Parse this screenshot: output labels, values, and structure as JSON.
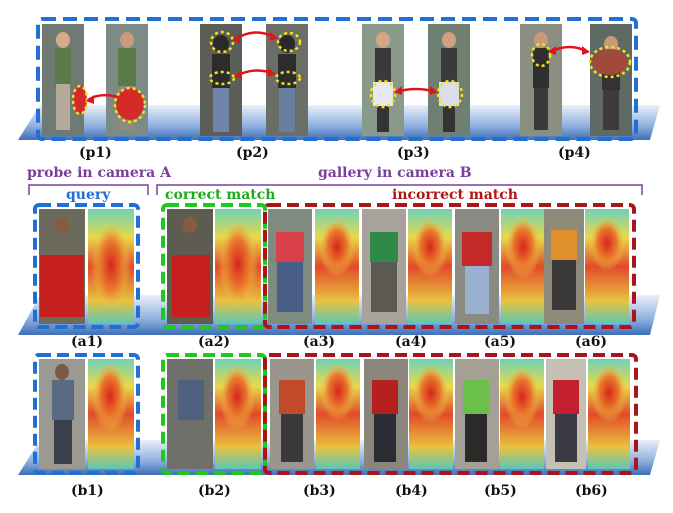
{
  "section_headers": {
    "probe": "probe in camera A",
    "gallery": "gallery in camera B",
    "query": "query",
    "correct": "correct match",
    "incorrect": "incorrect match"
  },
  "top_labels": [
    "(p1)",
    "(p2)",
    "(p3)",
    "(p4)"
  ],
  "row_a_labels": [
    "(a1)",
    "(a2)",
    "(a3)",
    "(a4)",
    "(a5)",
    "(a6)"
  ],
  "row_b_labels": [
    "(b1)",
    "(b2)",
    "(b3)",
    "(b4)",
    "(b5)",
    "(b6)"
  ],
  "colors": {
    "query_box": "#1f6fd6",
    "correct_box": "#1ec81e",
    "incorrect_box": "#a8141a",
    "highlight": "#f5e21a",
    "arrow": "#e0141a",
    "bracket": "#7a3e9d",
    "platform": "#4f7ec4"
  }
}
